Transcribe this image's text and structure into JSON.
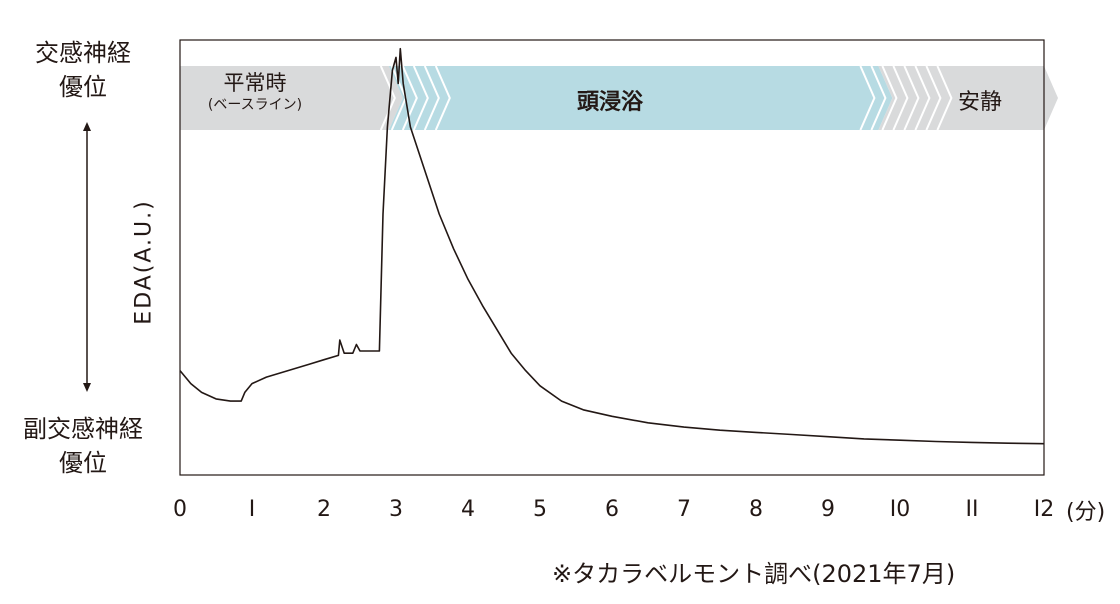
{
  "y_axis": {
    "top_label_line1": "交感神経",
    "top_label_line2": "優位",
    "bottom_label_line1": "副交感神経",
    "bottom_label_line2": "優位",
    "title": "EDA(A.U.)"
  },
  "x_axis": {
    "ticks": [
      "0",
      "I",
      "2",
      "3",
      "4",
      "5",
      "6",
      "7",
      "8",
      "9",
      "I0",
      "II",
      "I2"
    ],
    "unit": "(分)"
  },
  "phases": {
    "baseline_label": "平常時",
    "baseline_sub": "(ベースライン)",
    "bath_label": "頭浸浴",
    "rest_label": "安静"
  },
  "source_note": "※タカラベルモント調べ(2021年7月)",
  "colors": {
    "baseline": "#d9dadb",
    "bath": "#b7dbe3",
    "rest": "#d9dadb",
    "line": "#231815"
  },
  "chart_data": {
    "type": "line",
    "xlabel": "(分)",
    "ylabel": "EDA(A.U.)",
    "xlim": [
      0,
      12
    ],
    "ylim": [
      0,
      100
    ],
    "phase_spans": [
      {
        "name": "平常時",
        "start": 0,
        "end": 2.9
      },
      {
        "name": "頭浸浴",
        "start": 2.9,
        "end": 9.7
      },
      {
        "name": "安静",
        "start": 9.7,
        "end": 12
      }
    ],
    "series": [
      {
        "values": [
          [
            0.0,
            24
          ],
          [
            0.15,
            21
          ],
          [
            0.3,
            19
          ],
          [
            0.5,
            17.5
          ],
          [
            0.7,
            17
          ],
          [
            0.85,
            17
          ],
          [
            0.9,
            19
          ],
          [
            1.0,
            21
          ],
          [
            1.2,
            22.5
          ],
          [
            1.5,
            24
          ],
          [
            1.8,
            25.5
          ],
          [
            2.0,
            26.5
          ],
          [
            2.2,
            27.5
          ],
          [
            2.22,
            31
          ],
          [
            2.28,
            28
          ],
          [
            2.4,
            28
          ],
          [
            2.45,
            30
          ],
          [
            2.5,
            28.5
          ],
          [
            2.7,
            28.5
          ],
          [
            2.77,
            28.5
          ],
          [
            2.82,
            60
          ],
          [
            2.88,
            80
          ],
          [
            2.95,
            93
          ],
          [
            3.0,
            96
          ],
          [
            3.03,
            90
          ],
          [
            3.06,
            98
          ],
          [
            3.1,
            90
          ],
          [
            3.2,
            80
          ],
          [
            3.4,
            70
          ],
          [
            3.6,
            60
          ],
          [
            3.8,
            52
          ],
          [
            4.0,
            45
          ],
          [
            4.2,
            39
          ],
          [
            4.4,
            33.5
          ],
          [
            4.6,
            28
          ],
          [
            4.8,
            24
          ],
          [
            5.0,
            20.5
          ],
          [
            5.3,
            17
          ],
          [
            5.6,
            15
          ],
          [
            6.0,
            13.5
          ],
          [
            6.5,
            12
          ],
          [
            7.0,
            11
          ],
          [
            7.5,
            10.3
          ],
          [
            8.0,
            9.8
          ],
          [
            8.5,
            9.3
          ],
          [
            9.0,
            8.8
          ],
          [
            9.5,
            8.3
          ],
          [
            10.0,
            8.0
          ],
          [
            10.5,
            7.7
          ],
          [
            11.0,
            7.5
          ],
          [
            11.5,
            7.3
          ],
          [
            12.0,
            7.2
          ]
        ]
      }
    ]
  }
}
